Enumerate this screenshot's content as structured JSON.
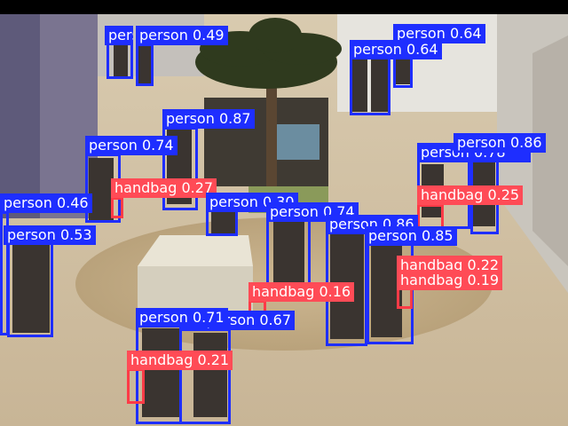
{
  "colors": {
    "person": "#1e2eff",
    "handbag": "#ff3b47"
  },
  "detections": [
    {
      "cls": "person",
      "conf": "0.49"
    },
    {
      "cls": "person",
      "conf": ""
    },
    {
      "cls": "person",
      "conf": "0.64"
    },
    {
      "cls": "person",
      "conf": "0.64"
    },
    {
      "cls": "person",
      "conf": "0.87"
    },
    {
      "cls": "person",
      "conf": "0.74"
    },
    {
      "cls": "person",
      "conf": "0.86"
    },
    {
      "cls": "person",
      "conf": "0.78"
    },
    {
      "cls": "handbag",
      "conf": "0.27"
    },
    {
      "cls": "handbag",
      "conf": "0.25"
    },
    {
      "cls": "person",
      "conf": "0.30"
    },
    {
      "cls": "person",
      "conf": "0.46"
    },
    {
      "cls": "person",
      "conf": "0.53"
    },
    {
      "cls": "person",
      "conf": "0.74"
    },
    {
      "cls": "person",
      "conf": "0.86"
    },
    {
      "cls": "person",
      "conf": "0.85"
    },
    {
      "cls": "handbag",
      "conf": "0.22"
    },
    {
      "cls": "handbag",
      "conf": "0.19"
    },
    {
      "cls": "handbag",
      "conf": "0.16"
    },
    {
      "cls": "person",
      "conf": "0.71"
    },
    {
      "cls": "person",
      "conf": "0.67"
    },
    {
      "cls": "handbag",
      "conf": "0.21"
    }
  ]
}
